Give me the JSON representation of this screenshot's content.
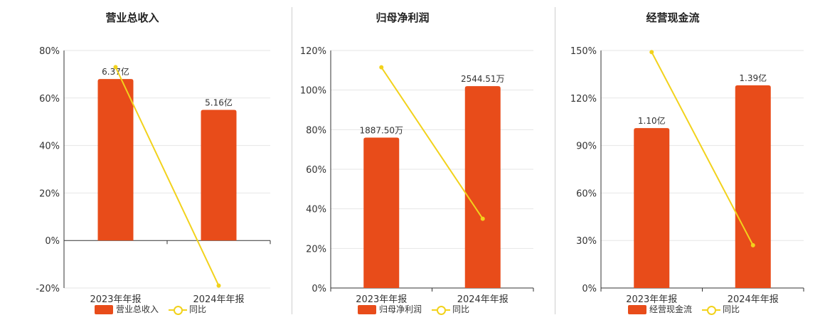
{
  "colors": {
    "bar": "#e84c1a",
    "line": "#f2d21c",
    "grid": "#e6e6e6",
    "axis": "#333333"
  },
  "chart_data": [
    {
      "type": "bar",
      "title": "营业总收入",
      "categories": [
        "2023年年报",
        "2024年年报"
      ],
      "series": [
        {
          "name": "营业总收入",
          "type": "bar",
          "values": [
            68,
            55
          ],
          "labels": [
            "6.37亿",
            "5.16亿"
          ]
        },
        {
          "name": "同比",
          "type": "line",
          "values": [
            73,
            -19
          ]
        }
      ],
      "ylim": [
        -20,
        80
      ],
      "yticks": [
        "80%",
        "60%",
        "40%",
        "20%",
        "0%",
        "-20%"
      ],
      "ytick_values": [
        80,
        60,
        40,
        20,
        0,
        -20
      ],
      "grid": true,
      "legend_position": "bottom"
    },
    {
      "type": "bar",
      "title": "归母净利润",
      "categories": [
        "2023年年报",
        "2024年年报"
      ],
      "series": [
        {
          "name": "归母净利润",
          "type": "bar",
          "values": [
            76,
            102
          ],
          "labels": [
            "1887.50万",
            "2544.51万"
          ]
        },
        {
          "name": "同比",
          "type": "line",
          "values": [
            111.5,
            35
          ]
        }
      ],
      "ylim": [
        0,
        120
      ],
      "yticks": [
        "120%",
        "100%",
        "80%",
        "60%",
        "40%",
        "20%",
        "0%"
      ],
      "ytick_values": [
        120,
        100,
        80,
        60,
        40,
        20,
        0
      ],
      "grid": true,
      "legend_position": "bottom"
    },
    {
      "type": "bar",
      "title": "经营现金流",
      "categories": [
        "2023年年报",
        "2024年年报"
      ],
      "series": [
        {
          "name": "经营现金流",
          "type": "bar",
          "values": [
            101,
            128
          ],
          "labels": [
            "1.10亿",
            "1.39亿"
          ]
        },
        {
          "name": "同比",
          "type": "line",
          "values": [
            149,
            27
          ]
        }
      ],
      "ylim": [
        0,
        150
      ],
      "yticks": [
        "150%",
        "120%",
        "90%",
        "60%",
        "30%",
        "0%"
      ],
      "ytick_values": [
        150,
        120,
        90,
        60,
        30,
        0
      ],
      "grid": true,
      "legend_position": "bottom"
    }
  ],
  "legend": [
    {
      "bar_label": "营业总收入",
      "line_label": "同比"
    },
    {
      "bar_label": "归母净利润",
      "line_label": "同比"
    },
    {
      "bar_label": "经营现金流",
      "line_label": "同比"
    }
  ]
}
